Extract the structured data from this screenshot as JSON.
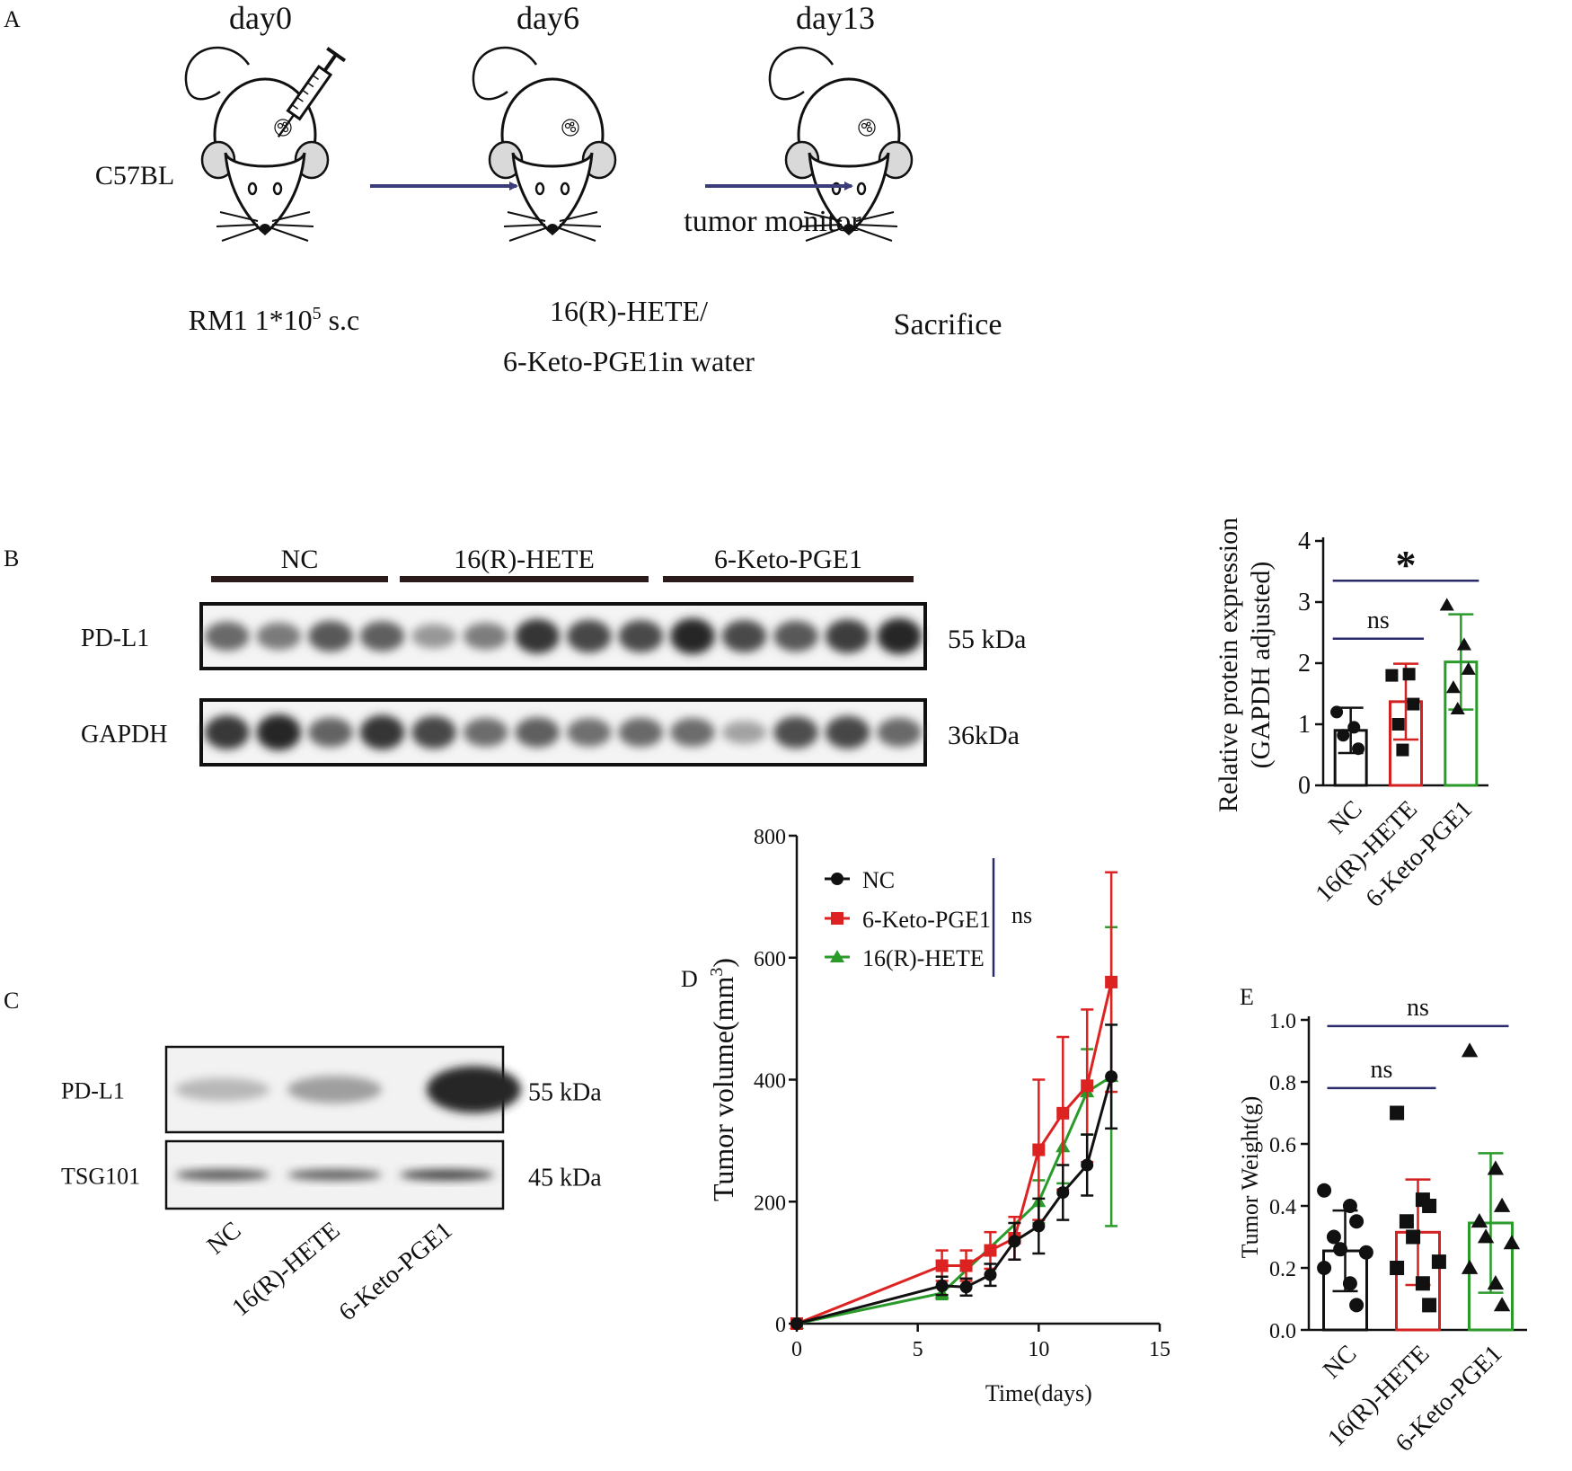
{
  "panelA": {
    "letter": "A",
    "days": [
      "day0",
      "day6",
      "day13"
    ],
    "strain": "C57BL",
    "step1_pre": "RM1 1*10",
    "step1_sup": "5",
    "step1_post": " s.c",
    "step2_line1": "16(R)-HETE/",
    "step2_line2": "6-Keto-PGE1in water",
    "arrow_label": "tumor monitor",
    "step3": "Sacrifice"
  },
  "panelB": {
    "letter": "B",
    "groups": [
      "NC",
      "16(R)-HETE",
      "6-Keto-PGE1"
    ],
    "rows": [
      {
        "label": "PD-L1",
        "kda": "55 kDa",
        "intensity": [
          0.62,
          0.52,
          0.72,
          0.68,
          0.35,
          0.5,
          0.92,
          0.82,
          0.8,
          1.0,
          0.8,
          0.72,
          0.88,
          1.0
        ]
      },
      {
        "label": "GAPDH",
        "kda": "36kDa",
        "intensity": [
          0.9,
          1.0,
          0.65,
          0.92,
          0.82,
          0.6,
          0.68,
          0.58,
          0.62,
          0.6,
          0.28,
          0.78,
          0.82,
          0.62
        ]
      }
    ]
  },
  "panelC": {
    "letter": "C",
    "rows": [
      {
        "label": "PD-L1",
        "kda": "55 kDa",
        "intensity": [
          0.18,
          0.32,
          1.0
        ]
      },
      {
        "label": "TSG101",
        "kda": "45 kDa",
        "intensity": [
          0.75,
          0.7,
          0.85
        ]
      }
    ],
    "lanes": [
      "NC",
      "16(R)-HETE",
      "6-Keto-PGE1"
    ]
  },
  "chart_data": [
    {
      "id": "B-bar",
      "type": "bar",
      "ylabel_line1": "Relative protein expression",
      "ylabel_line2": "(GAPDH adjusted)",
      "ylim": [
        0,
        4
      ],
      "yticks": [
        "0",
        "1",
        "2",
        "3",
        "4"
      ],
      "categories": [
        "NC",
        "16(R)-HETE",
        "6-Keto-PGE1"
      ],
      "colors": [
        "#111111",
        "#d32020",
        "#2a9a2a"
      ],
      "markers": [
        "circle",
        "square",
        "triangle"
      ],
      "means": [
        0.9,
        1.37,
        2.02
      ],
      "sd": [
        0.37,
        0.62,
        0.78
      ],
      "points": [
        [
          1.2,
          0.95,
          0.6,
          0.82
        ],
        [
          1.8,
          1.82,
          1.33,
          1.0,
          0.58
        ],
        [
          2.95,
          2.3,
          1.9,
          1.6,
          1.25
        ]
      ],
      "sig": [
        {
          "from": 0,
          "to": 1,
          "y": 2.4,
          "label": "ns",
          "style": "text"
        },
        {
          "from": 0,
          "to": 2,
          "y": 3.35,
          "label": "*",
          "style": "star"
        }
      ]
    },
    {
      "id": "D-line",
      "letter": "D",
      "type": "line",
      "xlabel": "Time(days)",
      "ylabel": "Tumor volume(mm",
      "ylabel_sup": "3",
      "ylabel_end": ")",
      "xlim": [
        0,
        15
      ],
      "ylim": [
        0,
        800
      ],
      "xticks": [
        "0",
        "5",
        "10",
        "15"
      ],
      "yticks": [
        "0",
        "200",
        "400",
        "600",
        "800"
      ],
      "legend_ns": "ns",
      "series": [
        {
          "name": "NC",
          "color": "#111111",
          "marker": "circle",
          "x": [
            0,
            6,
            7,
            8,
            9,
            10,
            11,
            12,
            13
          ],
          "y": [
            0,
            62,
            60,
            80,
            135,
            160,
            215,
            260,
            405
          ],
          "err": [
            0,
            15,
            14,
            18,
            30,
            45,
            45,
            50,
            85
          ]
        },
        {
          "name": "6-Keto-PGE1",
          "color": "#dd2222",
          "marker": "square",
          "x": [
            0,
            6,
            7,
            8,
            9,
            10,
            11,
            12,
            13
          ],
          "y": [
            0,
            95,
            95,
            120,
            140,
            285,
            345,
            390,
            560
          ],
          "err": [
            0,
            25,
            25,
            30,
            35,
            115,
            125,
            125,
            180
          ]
        },
        {
          "name": "16(R)-HETE",
          "color": "#2a9a2a",
          "marker": "triangle",
          "x": [
            0,
            6,
            10,
            11,
            12,
            13
          ],
          "y": [
            0,
            50,
            200,
            290,
            380,
            405
          ],
          "err": [
            0,
            10,
            35,
            60,
            70,
            245
          ]
        }
      ]
    },
    {
      "id": "E-bar",
      "letter": "E",
      "type": "bar",
      "ylabel": "Tumor Weight(g)",
      "ylim": [
        0,
        1.0
      ],
      "yticks": [
        "0.0",
        "0.2",
        "0.4",
        "0.6",
        "0.8",
        "1.0"
      ],
      "categories": [
        "NC",
        "16(R)-HETE",
        "6-Keto-PGE1"
      ],
      "colors": [
        "#111111",
        "#d32020",
        "#2a9a2a"
      ],
      "markers": [
        "circle",
        "square",
        "triangle"
      ],
      "means": [
        0.255,
        0.315,
        0.345
      ],
      "sd": [
        0.13,
        0.17,
        0.225
      ],
      "points": [
        [
          0.45,
          0.4,
          0.35,
          0.3,
          0.26,
          0.25,
          0.2,
          0.15,
          0.08
        ],
        [
          0.7,
          0.42,
          0.4,
          0.35,
          0.3,
          0.22,
          0.2,
          0.15,
          0.08
        ],
        [
          0.9,
          0.52,
          0.4,
          0.35,
          0.3,
          0.28,
          0.2,
          0.15,
          0.08
        ]
      ],
      "sig": [
        {
          "from": 0,
          "to": 1,
          "y": 0.78,
          "label": "ns",
          "style": "text"
        },
        {
          "from": 0,
          "to": 2,
          "y": 0.98,
          "label": "ns",
          "style": "text"
        }
      ]
    }
  ]
}
